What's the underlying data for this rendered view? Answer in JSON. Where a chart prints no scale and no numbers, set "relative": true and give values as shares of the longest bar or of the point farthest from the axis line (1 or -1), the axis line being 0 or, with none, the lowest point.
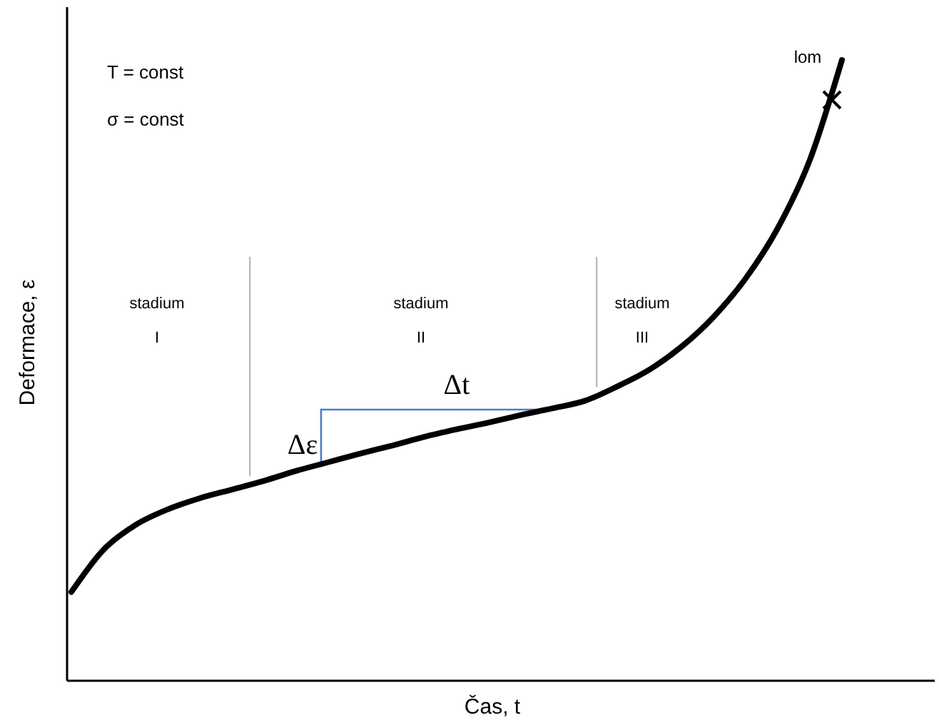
{
  "chart_data": {
    "type": "line",
    "relative": true,
    "xlabel": "Čas, t",
    "ylabel": "Deformace, ε",
    "categories": [
      null,
      null,
      null,
      null,
      null,
      null,
      null,
      null,
      null,
      null,
      null,
      null,
      null,
      null,
      null,
      null,
      null,
      null,
      null,
      null,
      null,
      null,
      null,
      null,
      null
    ],
    "series": [
      {
        "color": "#000000",
        "values": [
          0.143,
          0.211,
          0.251,
          0.276,
          0.294,
          0.308,
          0.322,
          0.338,
          0.352,
          0.366,
          0.379,
          0.393,
          0.405,
          0.416,
          0.428,
          0.439,
          0.451,
          0.474,
          0.501,
          0.538,
          0.586,
          0.648,
          0.729,
          0.839,
          1
        ]
      }
    ],
    "annotations": [
      "T = const",
      "σ = const",
      "stadium I",
      "stadium II",
      "stadium III",
      "lom",
      "Δε",
      "Δt"
    ],
    "marker": "none",
    "line_style": "solid"
  }
}
